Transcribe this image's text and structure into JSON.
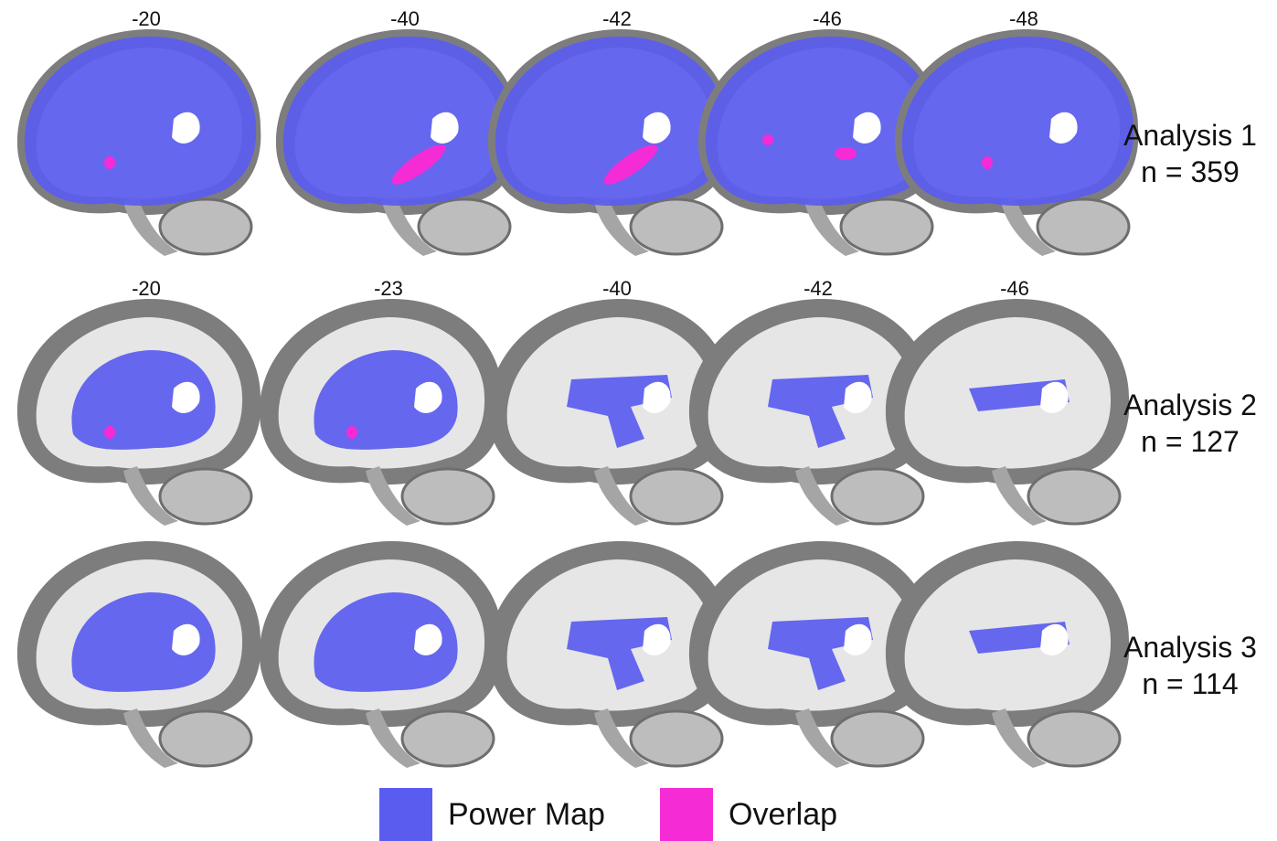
{
  "colors": {
    "power_map": "#5a5cf0",
    "overlap": "#f52bd6",
    "gray_matter": "#7d7d7d",
    "white_matter": "#e6e6e6",
    "cerebellum": "#bdbdbd"
  },
  "rows": [
    {
      "label": "Analysis 1",
      "n": "n = 359",
      "slices": [
        {
          "label": "-20",
          "coverage": "full",
          "overlap": "small"
        },
        {
          "label": "-40",
          "coverage": "full",
          "overlap": "large"
        },
        {
          "label": "-42",
          "coverage": "full",
          "overlap": "large"
        },
        {
          "label": "-46",
          "coverage": "full",
          "overlap": "medium"
        },
        {
          "label": "-48",
          "coverage": "full",
          "overlap": "small"
        }
      ]
    },
    {
      "label": "Analysis 2",
      "n": "n = 127",
      "slices": [
        {
          "label": "-20",
          "coverage": "core",
          "overlap": "small"
        },
        {
          "label": "-23",
          "coverage": "core",
          "overlap": "small"
        },
        {
          "label": "-40",
          "coverage": "band",
          "overlap": "none"
        },
        {
          "label": "-42",
          "coverage": "band",
          "overlap": "none"
        },
        {
          "label": "-46",
          "coverage": "thin",
          "overlap": "none"
        }
      ]
    },
    {
      "label": "Analysis 3",
      "n": "n = 114",
      "slices": [
        {
          "label": "",
          "coverage": "core",
          "overlap": "none"
        },
        {
          "label": "",
          "coverage": "core",
          "overlap": "none"
        },
        {
          "label": "",
          "coverage": "band",
          "overlap": "none"
        },
        {
          "label": "",
          "coverage": "band",
          "overlap": "none"
        },
        {
          "label": "",
          "coverage": "thin",
          "overlap": "none"
        }
      ]
    }
  ],
  "legend": {
    "power_map": "Power Map",
    "overlap": "Overlap"
  }
}
